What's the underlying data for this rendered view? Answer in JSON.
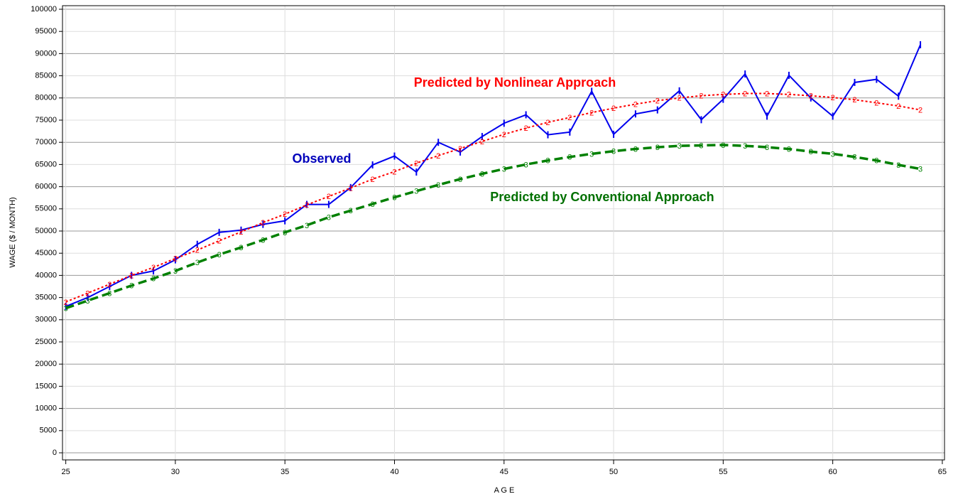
{
  "chart_data": {
    "type": "line",
    "x_label": "A G E",
    "y_label": "WAGE ($ / MONTH)",
    "annotations": [
      "Predicted by Nonlinear Approach",
      "Observed",
      "Predicted by Conventional Approach"
    ],
    "x": [
      25,
      26,
      27,
      28,
      29,
      30,
      31,
      32,
      33,
      34,
      35,
      36,
      37,
      38,
      39,
      40,
      41,
      42,
      43,
      44,
      45,
      46,
      47,
      48,
      49,
      50,
      51,
      52,
      53,
      54,
      55,
      56,
      57,
      58,
      59,
      60,
      61,
      62,
      63,
      64
    ],
    "series": [
      {
        "name": "Observed",
        "color": "#0000ee",
        "values": [
          33000,
          35000,
          37500,
          40000,
          41000,
          43500,
          47000,
          49700,
          50200,
          51500,
          52300,
          56000,
          56000,
          59800,
          64900,
          66900,
          63300,
          70000,
          67800,
          71300,
          74300,
          76200,
          71700,
          72300,
          81500,
          71800,
          76400,
          77300,
          81600,
          75100,
          79700,
          85400,
          75900,
          85100,
          80000,
          75900,
          83500,
          84200,
          80400,
          92000
        ]
      },
      {
        "name": "Predicted by Nonlinear Approach",
        "color": "#ff0000",
        "marker": "2",
        "values": [
          34000,
          36000,
          38000,
          40000,
          41800,
          43800,
          45700,
          47800,
          49800,
          51900,
          53800,
          55900,
          57800,
          59700,
          61700,
          63400,
          65300,
          67000,
          68600,
          70200,
          71800,
          73200,
          74500,
          75600,
          76700,
          77700,
          78600,
          79400,
          80000,
          80500,
          80800,
          81000,
          81000,
          80800,
          80500,
          80100,
          79600,
          78900,
          78200,
          77300
        ]
      },
      {
        "name": "Predicted by Conventional Approach",
        "color": "#008000",
        "marker": "3",
        "values": [
          32600,
          34300,
          36000,
          37700,
          39300,
          41000,
          42900,
          44700,
          46300,
          48000,
          49700,
          51300,
          53100,
          54600,
          56100,
          57600,
          59000,
          60400,
          61700,
          62900,
          64000,
          65000,
          65900,
          66700,
          67400,
          68000,
          68500,
          68900,
          69200,
          69300,
          69400,
          69200,
          68900,
          68500,
          67900,
          67400,
          66700,
          65900,
          64900,
          64000
        ]
      }
    ],
    "xlim": [
      24.85,
      65.1
    ],
    "xticks": [
      25,
      30,
      35,
      40,
      45,
      50,
      55,
      60,
      65
    ],
    "ylim": [
      -1600,
      100800
    ],
    "yticks": [
      0,
      5000,
      10000,
      15000,
      20000,
      25000,
      30000,
      35000,
      40000,
      45000,
      50000,
      55000,
      60000,
      65000,
      70000,
      75000,
      80000,
      85000,
      90000,
      95000,
      100000
    ],
    "grid": true
  }
}
